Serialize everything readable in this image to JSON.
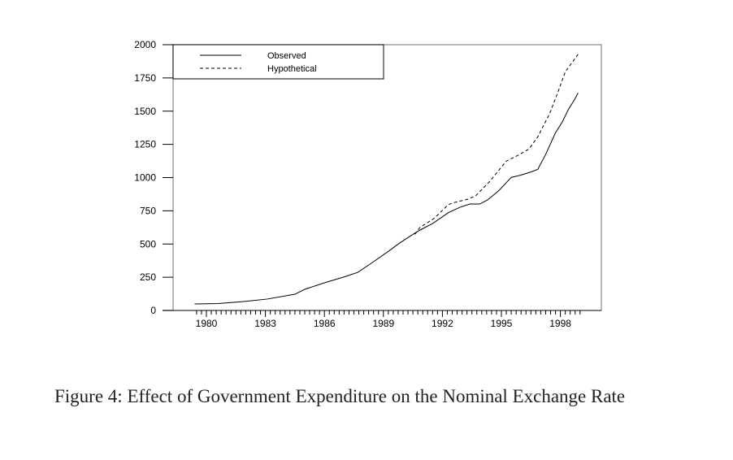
{
  "chart_data": {
    "type": "line",
    "title": "",
    "xlabel": "",
    "ylabel": "",
    "xlim": [
      1978.3,
      1999.4
    ],
    "ylim": [
      0,
      2000
    ],
    "yticks": [
      0,
      250,
      500,
      750,
      1000,
      1250,
      1500,
      1750,
      2000
    ],
    "xticks": [
      1980,
      1983,
      1986,
      1989,
      1992,
      1995,
      1998
    ],
    "minor_ticks": "quarterly",
    "grid": false,
    "legend_position": "top-left",
    "series": [
      {
        "name": "Observed",
        "style": "solid",
        "color": "#000000",
        "x": [
          1979.4,
          1980.6,
          1981.9,
          1983.1,
          1984.5,
          1985.0,
          1986.0,
          1987.1,
          1987.7,
          1988.5,
          1989.3,
          1989.8,
          1990.4,
          1990.85,
          1991.5,
          1992.3,
          1992.9,
          1993.4,
          1993.9,
          1994.3,
          1994.85,
          1995.5,
          1995.95,
          1996.5,
          1996.85,
          1997.25,
          1997.75,
          1998.1,
          1998.4,
          1998.7,
          1998.9
        ],
        "y": [
          49,
          52,
          67,
          86,
          122,
          159,
          208,
          257,
          287,
          367,
          450,
          505,
          563,
          604,
          654,
          736,
          777,
          801,
          801,
          832,
          899,
          1001,
          1017,
          1042,
          1062,
          1174,
          1337,
          1419,
          1511,
          1582,
          1637
        ]
      },
      {
        "name": "Hypothetical",
        "style": "dashed",
        "color": "#000000",
        "x": [
          1990.6,
          1990.85,
          1991.6,
          1992.3,
          1992.6,
          1993.3,
          1993.7,
          1994.4,
          1995.25,
          1995.8,
          1996.4,
          1996.85,
          1997.45,
          1997.9,
          1998.25,
          1998.5,
          1998.9
        ],
        "y": [
          573,
          624,
          695,
          797,
          812,
          838,
          864,
          970,
          1124,
          1164,
          1215,
          1307,
          1480,
          1653,
          1796,
          1847,
          1928
        ]
      }
    ]
  },
  "caption": "Figure 4: Effect of Government Expenditure on the Nominal Exchange Rate"
}
